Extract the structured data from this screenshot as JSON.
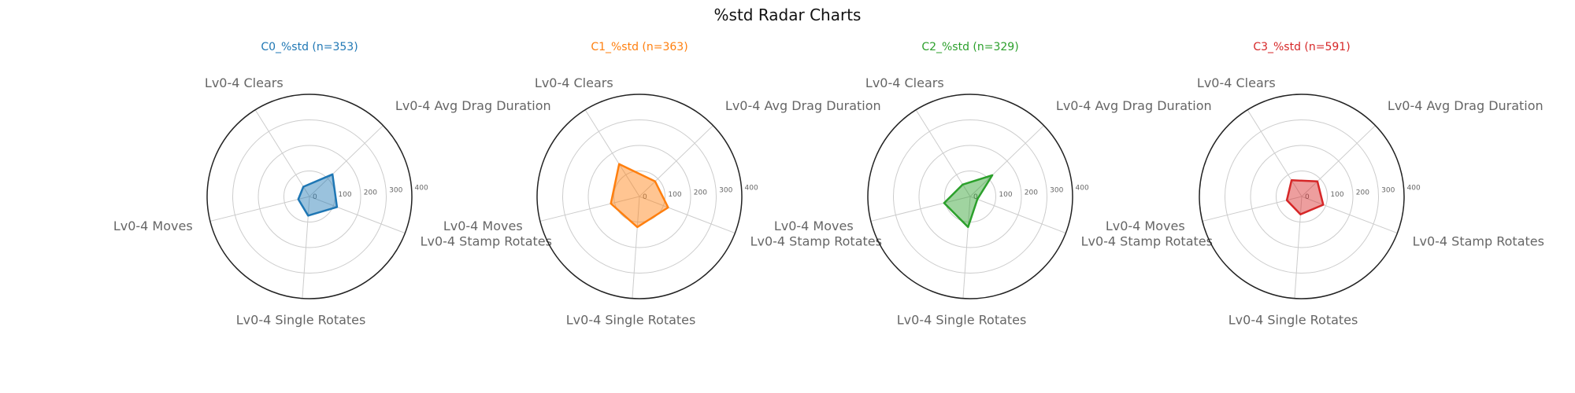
{
  "title": "%std Radar Charts",
  "chart_data": {
    "type": "radar",
    "title": "%std Radar Charts",
    "axes": [
      "Lv0-4 Avg Drag Duration",
      "Lv0-4 Stamp Rotates",
      "Lv0-4 Single Rotates",
      "Lv0-4 Moves",
      "Lv0-4 Clears"
    ],
    "rlim": [
      0,
      400
    ],
    "rticks": [
      0,
      100,
      200,
      300,
      400
    ],
    "grid": true,
    "charts": [
      {
        "title": "C0_%std (n=353)",
        "color": "#1f77b4",
        "values": [
          125,
          115,
          75,
          45,
          45
        ]
      },
      {
        "title": "C1_%std (n=363)",
        "color": "#ff7f0e",
        "values": [
          85,
          120,
          120,
          115,
          150
        ]
      },
      {
        "title": "C2_%std (n=329)",
        "color": "#2ca02c",
        "values": [
          120,
          30,
          120,
          105,
          55
        ]
      },
      {
        "title": "C3_%std (n=591)",
        "color": "#d62728",
        "values": [
          85,
          90,
          70,
          60,
          75
        ]
      }
    ]
  }
}
